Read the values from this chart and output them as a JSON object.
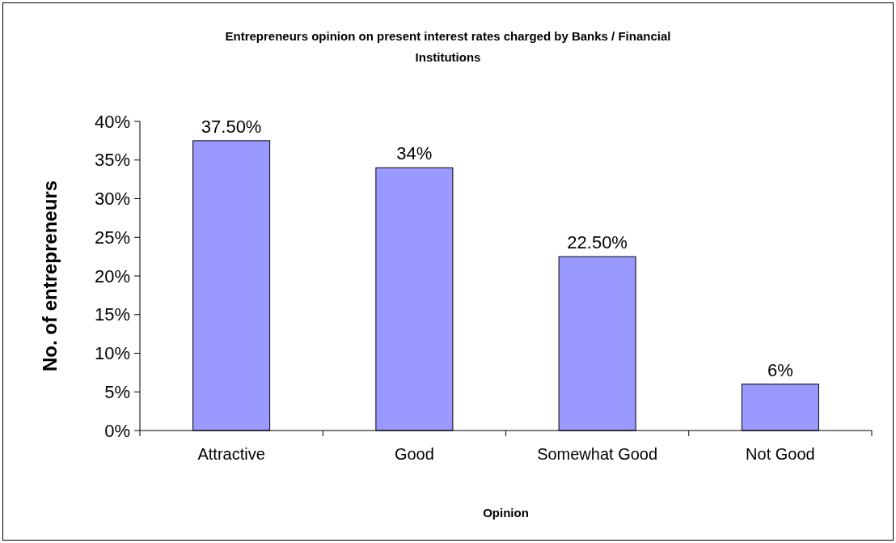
{
  "chart_data": {
    "type": "bar",
    "title": "Entrepreneurs opinion on present interest rates charged by Banks / Financial Institutions",
    "xlabel": "Opinion",
    "ylabel": "No. of entrepreneurs",
    "categories": [
      "Attractive",
      "Good",
      "Somewhat Good",
      "Not Good"
    ],
    "values": [
      37.5,
      34,
      22.5,
      6
    ],
    "value_labels": [
      "37.50%",
      "34%",
      "22.50%",
      "6%"
    ],
    "color": "#9999ff",
    "ylim": [
      0,
      40
    ],
    "yticks": [
      {
        "value": 0,
        "label": "0%"
      },
      {
        "value": 5,
        "label": "5%"
      },
      {
        "value": 10,
        "label": "10%"
      },
      {
        "value": 15,
        "label": "15%"
      },
      {
        "value": 20,
        "label": "20%"
      },
      {
        "value": 25,
        "label": "25%"
      },
      {
        "value": 30,
        "label": "30%"
      },
      {
        "value": 35,
        "label": "35%"
      },
      {
        "value": 40,
        "label": "40%"
      }
    ],
    "grid": false
  }
}
